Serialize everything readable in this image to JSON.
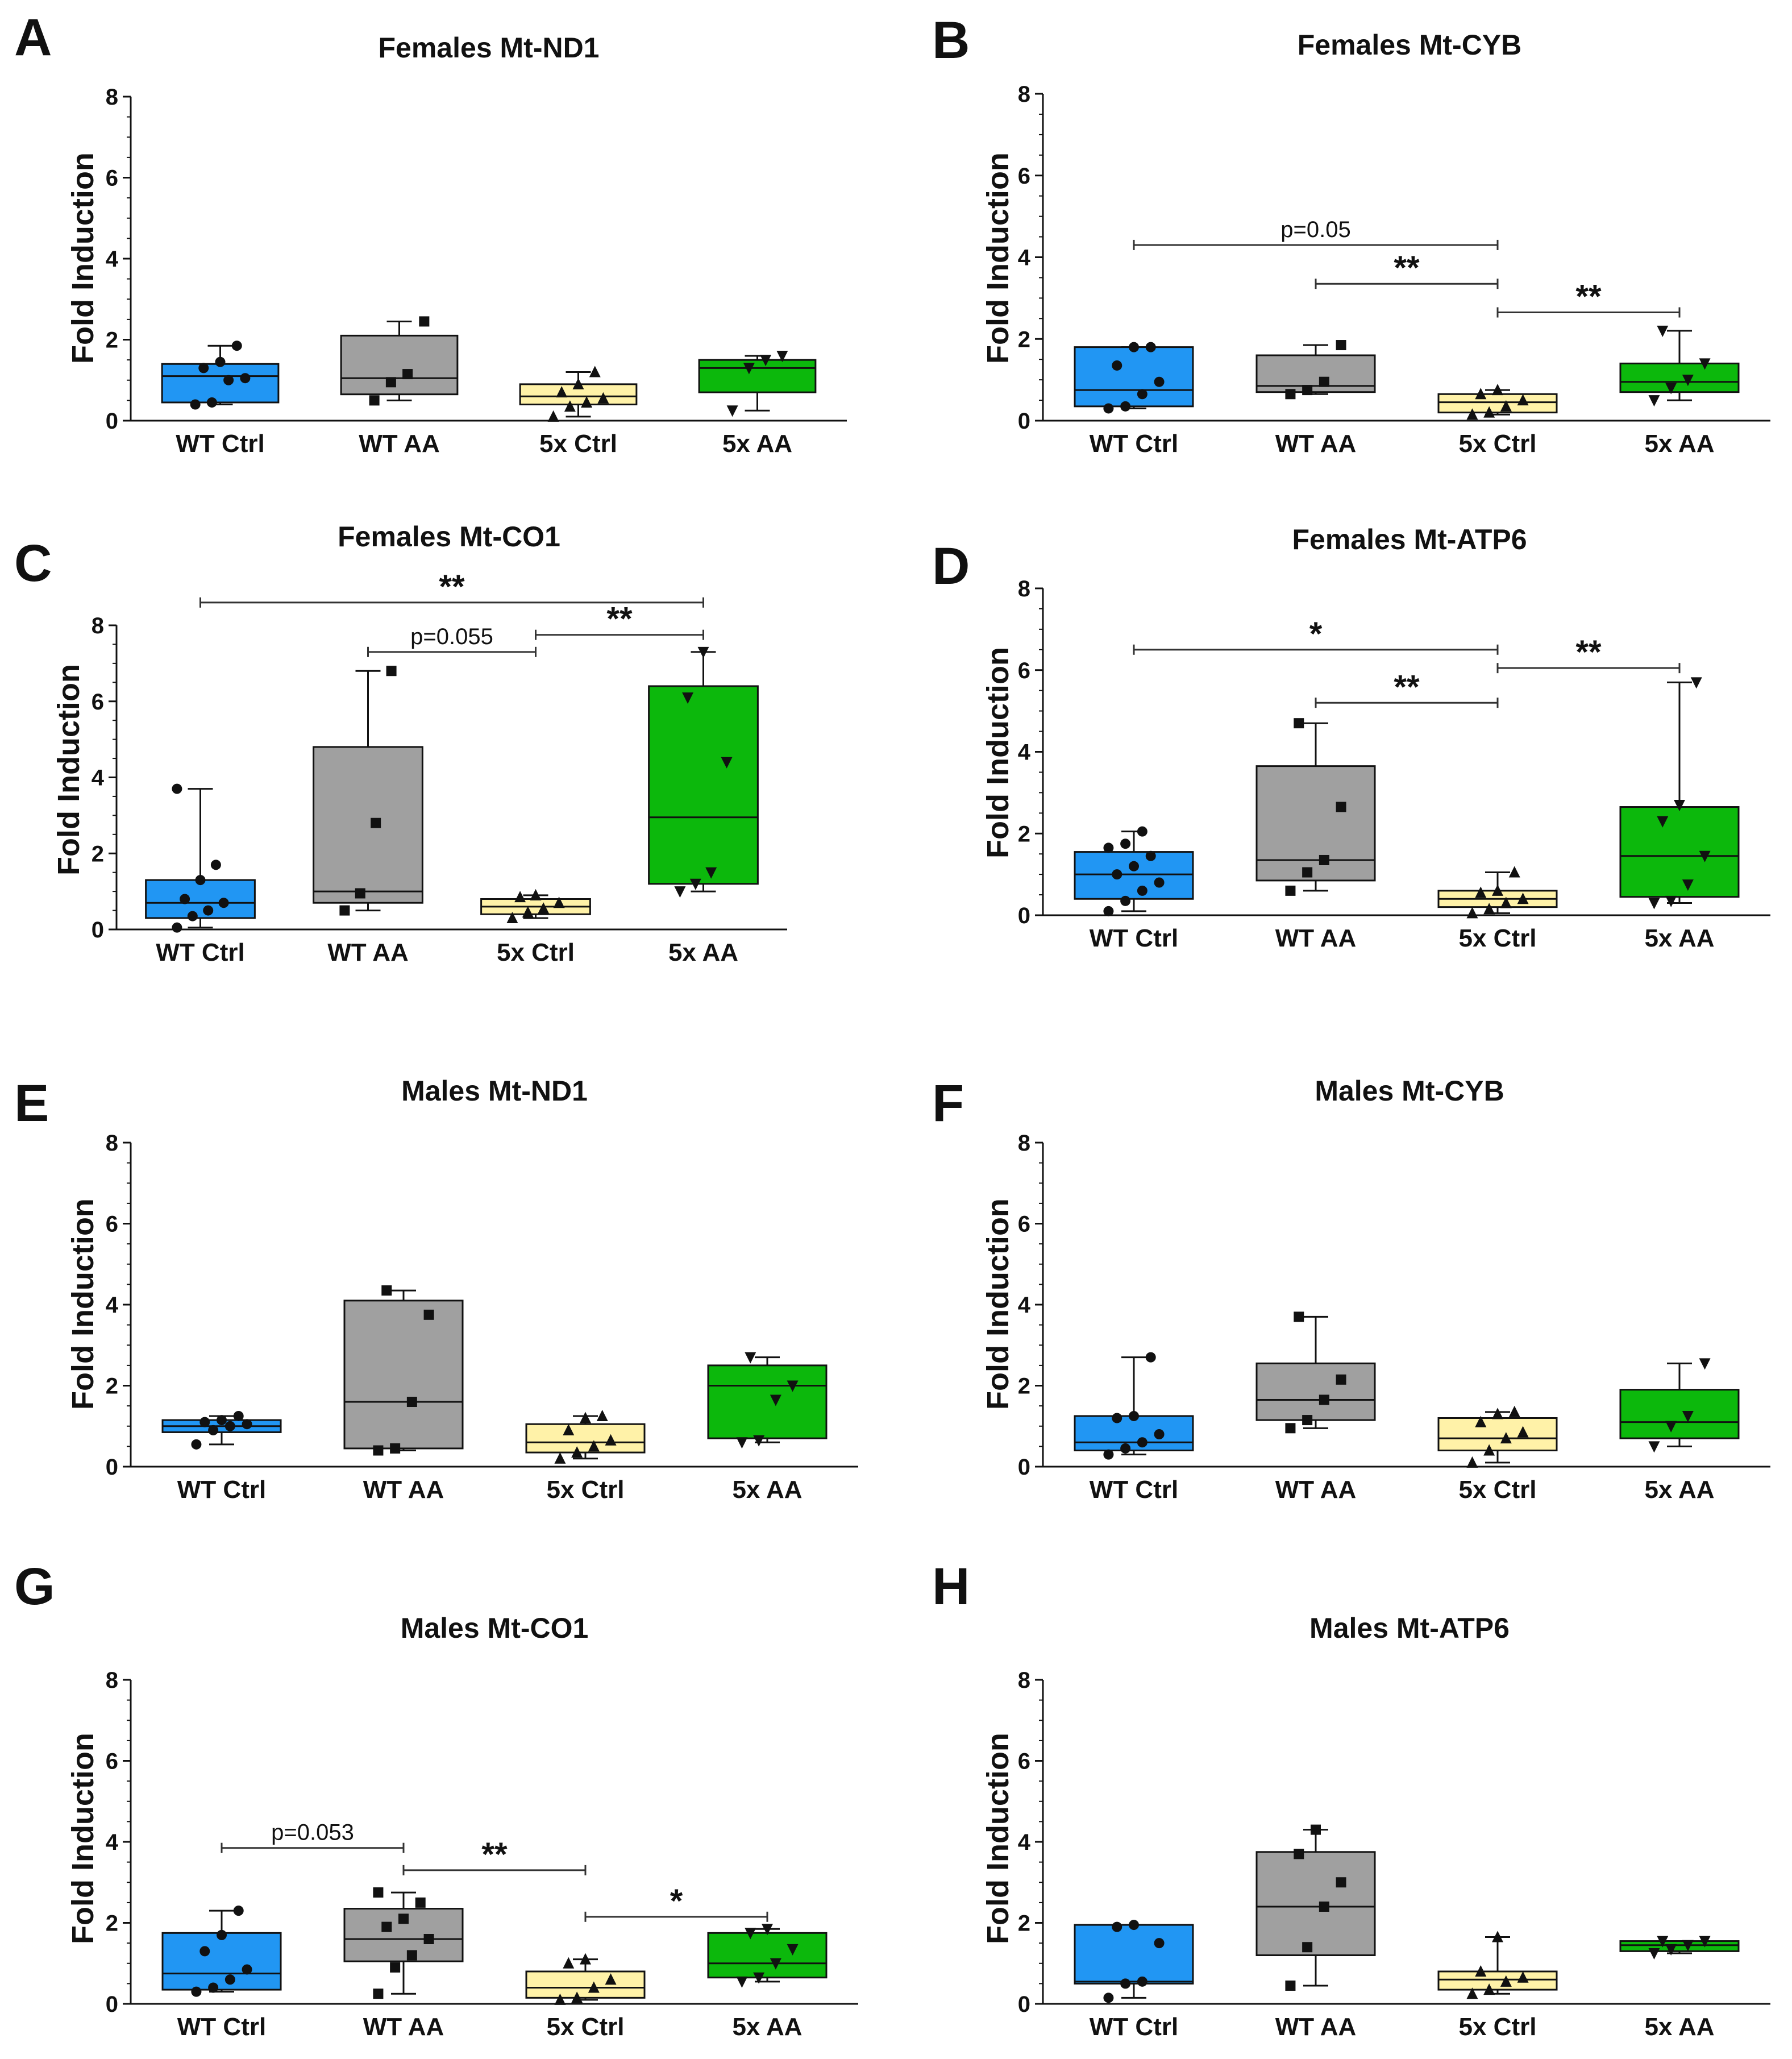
{
  "colors": {
    "WT Ctrl": "#2196F3",
    "WT AA": "#A0A0A0",
    "5x Ctrl": "#FFF2A8",
    "5x AA": "#0CB80C"
  },
  "chart_data": [
    {
      "letter": "A",
      "type": "box",
      "title": "Females Mt-ND1",
      "ylabel": "Fold Induction",
      "ylim": [
        0,
        8
      ],
      "yticks": [
        "0",
        "2",
        "4",
        "6",
        "8"
      ],
      "categories": [
        "WT Ctrl",
        "WT AA",
        "5x Ctrl",
        "5x AA"
      ],
      "boxes": [
        {
          "min": 0.4,
          "q1": 0.45,
          "median": 1.1,
          "q3": 1.4,
          "max": 1.85,
          "points": [
            0.4,
            0.45,
            1.0,
            1.05,
            1.3,
            1.45,
            1.85
          ],
          "marker": "circle"
        },
        {
          "min": 0.5,
          "q1": 0.65,
          "median": 1.05,
          "q3": 2.1,
          "max": 2.45,
          "points": [
            0.5,
            0.95,
            1.15,
            2.45
          ],
          "marker": "square"
        },
        {
          "min": 0.1,
          "q1": 0.4,
          "median": 0.6,
          "q3": 0.9,
          "max": 1.2,
          "points": [
            0.1,
            0.35,
            0.45,
            0.55,
            0.7,
            0.9,
            1.2
          ],
          "marker": "triangle"
        },
        {
          "min": 0.25,
          "q1": 0.7,
          "median": 1.3,
          "q3": 1.5,
          "max": 1.6,
          "points": [
            0.25,
            1.3,
            1.5,
            1.6
          ],
          "marker": "triangle-down"
        }
      ],
      "annotations": []
    },
    {
      "letter": "B",
      "type": "box",
      "title": "Females Mt-CYB",
      "ylabel": "Fold Induction",
      "ylim": [
        0,
        8
      ],
      "yticks": [
        "0",
        "2",
        "4",
        "6",
        "8"
      ],
      "categories": [
        "WT Ctrl",
        "WT AA",
        "5x Ctrl",
        "5x AA"
      ],
      "boxes": [
        {
          "min": 0.3,
          "q1": 0.35,
          "median": 0.75,
          "q3": 1.8,
          "max": 1.8,
          "points": [
            0.3,
            0.35,
            0.65,
            0.95,
            1.35,
            1.8,
            1.8
          ],
          "marker": "circle"
        },
        {
          "min": 0.65,
          "q1": 0.7,
          "median": 0.85,
          "q3": 1.6,
          "max": 1.85,
          "points": [
            0.65,
            0.75,
            0.95,
            1.85
          ],
          "marker": "square"
        },
        {
          "min": 0.15,
          "q1": 0.2,
          "median": 0.45,
          "q3": 0.65,
          "max": 0.75,
          "points": [
            0.15,
            0.2,
            0.35,
            0.5,
            0.65,
            0.75
          ],
          "marker": "triangle"
        },
        {
          "min": 0.5,
          "q1": 0.7,
          "median": 0.95,
          "q3": 1.4,
          "max": 2.2,
          "points": [
            0.5,
            0.8,
            1.0,
            1.4,
            2.2
          ],
          "marker": "triangle-down"
        }
      ],
      "annotations": [
        {
          "from": 0,
          "to": 2,
          "y": 4.3,
          "label": "p=0.05",
          "style": "text"
        },
        {
          "from": 1,
          "to": 2,
          "y": 3.35,
          "label": "**",
          "style": "star"
        },
        {
          "from": 2,
          "to": 3,
          "y": 2.65,
          "label": "**",
          "style": "star"
        }
      ]
    },
    {
      "letter": "C",
      "type": "box",
      "title": "Females Mt-CO1",
      "ylabel": "Fold Induction",
      "ylim": [
        0,
        8
      ],
      "yticks": [
        "0",
        "2",
        "4",
        "6",
        "8"
      ],
      "categories": [
        "WT Ctrl",
        "WT AA",
        "5x Ctrl",
        "5x AA"
      ],
      "boxes": [
        {
          "min": 0.05,
          "q1": 0.3,
          "median": 0.7,
          "q3": 1.3,
          "max": 3.7,
          "points": [
            0.05,
            0.35,
            0.5,
            0.7,
            0.8,
            1.3,
            1.7,
            3.7
          ],
          "marker": "circle"
        },
        {
          "min": 0.5,
          "q1": 0.7,
          "median": 1.0,
          "q3": 4.8,
          "max": 6.8,
          "points": [
            0.5,
            0.95,
            2.8,
            6.8
          ],
          "marker": "square"
        },
        {
          "min": 0.3,
          "q1": 0.4,
          "median": 0.6,
          "q3": 0.8,
          "max": 0.9,
          "points": [
            0.3,
            0.45,
            0.55,
            0.7,
            0.85,
            0.9
          ],
          "marker": "triangle"
        },
        {
          "min": 1.0,
          "q1": 1.2,
          "median": 2.95,
          "q3": 6.4,
          "max": 7.3,
          "points": [
            1.0,
            1.2,
            1.5,
            4.4,
            6.1,
            7.3
          ],
          "marker": "triangle-down"
        }
      ],
      "annotations": [
        {
          "from": 0,
          "to": 3,
          "y": 8.6,
          "label": "**",
          "style": "star"
        },
        {
          "from": 1,
          "to": 2,
          "y": 7.3,
          "label": "p=0.055",
          "style": "text"
        },
        {
          "from": 2,
          "to": 3,
          "y": 7.75,
          "label": "**",
          "style": "star"
        }
      ]
    },
    {
      "letter": "D",
      "type": "box",
      "title": "Females Mt-ATP6",
      "ylabel": "Fold Induction",
      "ylim": [
        0,
        8
      ],
      "yticks": [
        "0",
        "2",
        "4",
        "6",
        "8"
      ],
      "categories": [
        "WT Ctrl",
        "WT AA",
        "5x Ctrl",
        "5x AA"
      ],
      "boxes": [
        {
          "min": 0.1,
          "q1": 0.4,
          "median": 1.0,
          "q3": 1.55,
          "max": 2.05,
          "points": [
            0.1,
            0.35,
            0.6,
            0.8,
            1.0,
            1.2,
            1.45,
            1.65,
            1.75,
            2.05
          ],
          "marker": "circle"
        },
        {
          "min": 0.6,
          "q1": 0.85,
          "median": 1.35,
          "q3": 3.65,
          "max": 4.7,
          "points": [
            0.6,
            1.05,
            1.35,
            2.65,
            4.7
          ],
          "marker": "square"
        },
        {
          "min": 0.05,
          "q1": 0.2,
          "median": 0.4,
          "q3": 0.6,
          "max": 1.05,
          "points": [
            0.05,
            0.15,
            0.3,
            0.4,
            0.55,
            0.6,
            1.05
          ],
          "marker": "triangle"
        },
        {
          "min": 0.3,
          "q1": 0.45,
          "median": 1.45,
          "q3": 2.65,
          "max": 5.7,
          "points": [
            0.3,
            0.35,
            0.75,
            1.45,
            2.3,
            2.7,
            5.7
          ],
          "marker": "triangle-down"
        }
      ],
      "annotations": [
        {
          "from": 0,
          "to": 2,
          "y": 6.5,
          "label": "*",
          "style": "star"
        },
        {
          "from": 1,
          "to": 2,
          "y": 5.2,
          "label": "**",
          "style": "star"
        },
        {
          "from": 2,
          "to": 3,
          "y": 6.05,
          "label": "**",
          "style": "star"
        }
      ]
    },
    {
      "letter": "E",
      "type": "box",
      "title": "Males Mt-ND1",
      "ylabel": "Fold Induction",
      "ylim": [
        0,
        8
      ],
      "yticks": [
        "0",
        "2",
        "4",
        "6",
        "8"
      ],
      "categories": [
        "WT Ctrl",
        "WT AA",
        "5x Ctrl",
        "5x AA"
      ],
      "boxes": [
        {
          "min": 0.55,
          "q1": 0.85,
          "median": 1.0,
          "q3": 1.15,
          "max": 1.25,
          "points": [
            0.55,
            0.9,
            1.0,
            1.05,
            1.1,
            1.15,
            1.25
          ],
          "marker": "circle"
        },
        {
          "min": 0.4,
          "q1": 0.45,
          "median": 1.6,
          "q3": 4.1,
          "max": 4.35,
          "points": [
            0.4,
            0.45,
            1.6,
            3.75,
            4.35
          ],
          "marker": "square"
        },
        {
          "min": 0.2,
          "q1": 0.35,
          "median": 0.6,
          "q3": 1.05,
          "max": 1.25,
          "points": [
            0.2,
            0.35,
            0.5,
            0.65,
            0.9,
            1.2,
            1.25
          ],
          "marker": "triangle"
        },
        {
          "min": 0.6,
          "q1": 0.7,
          "median": 2.0,
          "q3": 2.5,
          "max": 2.7,
          "points": [
            0.6,
            0.65,
            1.65,
            2.0,
            2.7
          ],
          "marker": "triangle-down"
        }
      ],
      "annotations": []
    },
    {
      "letter": "F",
      "type": "box",
      "title": "Males Mt-CYB",
      "ylabel": "Fold Induction",
      "ylim": [
        0,
        8
      ],
      "yticks": [
        "0",
        "2",
        "4",
        "6",
        "8"
      ],
      "categories": [
        "WT Ctrl",
        "WT AA",
        "5x Ctrl",
        "5x AA"
      ],
      "boxes": [
        {
          "min": 0.3,
          "q1": 0.4,
          "median": 0.6,
          "q3": 1.25,
          "max": 2.7,
          "points": [
            0.3,
            0.45,
            0.6,
            0.8,
            1.2,
            1.25,
            2.7
          ],
          "marker": "circle"
        },
        {
          "min": 0.95,
          "q1": 1.15,
          "median": 1.65,
          "q3": 2.55,
          "max": 3.7,
          "points": [
            0.95,
            1.15,
            1.65,
            2.15,
            3.7
          ],
          "marker": "square"
        },
        {
          "min": 0.1,
          "q1": 0.4,
          "median": 0.7,
          "q3": 1.2,
          "max": 1.35,
          "points": [
            0.1,
            0.4,
            0.7,
            0.85,
            1.1,
            1.3,
            1.35
          ],
          "marker": "triangle"
        },
        {
          "min": 0.5,
          "q1": 0.7,
          "median": 1.1,
          "q3": 1.9,
          "max": 2.55,
          "points": [
            0.5,
            1.0,
            1.25,
            2.55
          ],
          "marker": "triangle-down"
        }
      ],
      "annotations": []
    },
    {
      "letter": "G",
      "type": "box",
      "title": "Males Mt-CO1",
      "ylabel": "Fold Induction",
      "ylim": [
        0,
        8
      ],
      "yticks": [
        "0",
        "2",
        "4",
        "6",
        "8"
      ],
      "categories": [
        "WT Ctrl",
        "WT AA",
        "5x Ctrl",
        "5x AA"
      ],
      "boxes": [
        {
          "min": 0.3,
          "q1": 0.35,
          "median": 0.75,
          "q3": 1.75,
          "max": 2.3,
          "points": [
            0.3,
            0.4,
            0.6,
            0.85,
            1.3,
            1.7,
            2.3
          ],
          "marker": "circle"
        },
        {
          "min": 0.25,
          "q1": 1.05,
          "median": 1.6,
          "q3": 2.35,
          "max": 2.75,
          "points": [
            0.25,
            0.9,
            1.2,
            1.6,
            1.9,
            2.1,
            2.5,
            2.75
          ],
          "marker": "square"
        },
        {
          "min": 0.1,
          "q1": 0.15,
          "median": 0.4,
          "q3": 0.8,
          "max": 1.1,
          "points": [
            0.1,
            0.15,
            0.4,
            0.6,
            1.0,
            1.1
          ],
          "marker": "triangle"
        },
        {
          "min": 0.55,
          "q1": 0.65,
          "median": 1.0,
          "q3": 1.75,
          "max": 1.85,
          "points": [
            0.55,
            0.65,
            1.0,
            1.35,
            1.75,
            1.85
          ],
          "marker": "triangle-down"
        }
      ],
      "annotations": [
        {
          "from": 0,
          "to": 1,
          "y": 3.85,
          "label": "p=0.053",
          "style": "text"
        },
        {
          "from": 1,
          "to": 2,
          "y": 3.3,
          "label": "**",
          "style": "star"
        },
        {
          "from": 2,
          "to": 3,
          "y": 2.15,
          "label": "*",
          "style": "star"
        }
      ]
    },
    {
      "letter": "H",
      "type": "box",
      "title": "Males Mt-ATP6",
      "ylabel": "Fold Induction",
      "ylim": [
        0,
        8
      ],
      "yticks": [
        "0",
        "2",
        "4",
        "6",
        "8"
      ],
      "categories": [
        "WT Ctrl",
        "WT AA",
        "5x Ctrl",
        "5x AA"
      ],
      "boxes": [
        {
          "min": 0.15,
          "q1": 0.5,
          "median": 0.55,
          "q3": 1.95,
          "max": 1.95,
          "points": [
            0.15,
            0.5,
            0.55,
            1.5,
            1.9,
            1.95
          ],
          "marker": "circle"
        },
        {
          "min": 0.45,
          "q1": 1.2,
          "median": 2.4,
          "q3": 3.75,
          "max": 4.3,
          "points": [
            0.45,
            1.4,
            2.4,
            3.0,
            3.7,
            4.3
          ],
          "marker": "square"
        },
        {
          "min": 0.25,
          "q1": 0.35,
          "median": 0.6,
          "q3": 0.8,
          "max": 1.65,
          "points": [
            0.25,
            0.35,
            0.55,
            0.65,
            0.8,
            1.65
          ],
          "marker": "triangle"
        },
        {
          "min": 1.25,
          "q1": 1.3,
          "median": 1.45,
          "q3": 1.55,
          "max": 1.55,
          "points": [
            1.25,
            1.35,
            1.45,
            1.55,
            1.55
          ],
          "marker": "triangle-down"
        }
      ],
      "annotations": []
    }
  ]
}
